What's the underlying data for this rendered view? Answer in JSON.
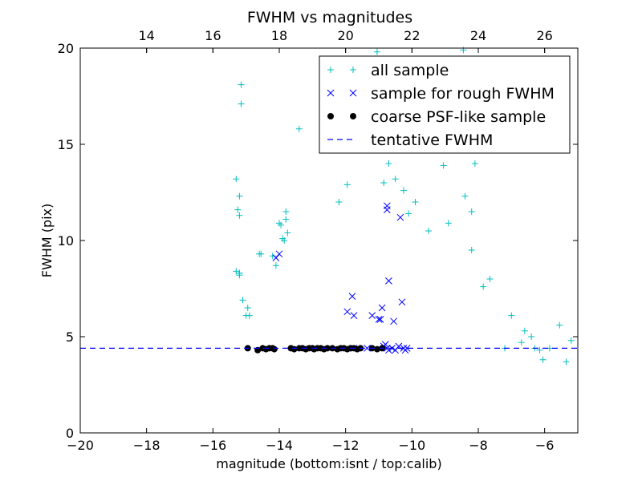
{
  "chart_data": {
    "type": "scatter",
    "title": "FWHM vs magnitudes",
    "xlabel": "magnitude (bottom:isnt / top:calib)",
    "ylabel": "FWHM (pix)",
    "xlim": [
      -20,
      -5
    ],
    "ylim": [
      0,
      20
    ],
    "x_ticks": [
      -20,
      -18,
      -16,
      -14,
      -12,
      -10,
      -8,
      -6
    ],
    "x_tick_labels": [
      "−20",
      "−18",
      "−16",
      "−14",
      "−12",
      "−10",
      "−8",
      "−6"
    ],
    "y_ticks": [
      0,
      5,
      10,
      15,
      20
    ],
    "y_tick_labels": [
      "0",
      "5",
      "10",
      "15",
      "20"
    ],
    "top_axis": {
      "offset": 32,
      "ticks": [
        14,
        16,
        18,
        20,
        22,
        24,
        26
      ],
      "tick_labels": [
        "14",
        "16",
        "18",
        "20",
        "22",
        "24",
        "26"
      ]
    },
    "grid": false,
    "legend_position": "top-right",
    "tentative_fwhm": 4.4,
    "series": [
      {
        "name": "all sample",
        "marker": "plus",
        "color": "#00bfbf",
        "x": [
          -15.3,
          -15.25,
          -15.2,
          -15.2,
          -15.15,
          -15.3,
          -15.2,
          -15.15,
          -15.2,
          -15.2,
          -15.1,
          -15.0,
          -14.95,
          -14.9,
          -14.6,
          -14.55,
          -14.2,
          -14.1,
          -14.0,
          -13.95,
          -13.9,
          -13.85,
          -13.8,
          -13.8,
          -13.75,
          -13.4,
          -12.2,
          -11.95,
          -11.05,
          -10.95,
          -10.85,
          -10.7,
          -10.5,
          -10.25,
          -10.1,
          -9.9,
          -9.7,
          -9.5,
          -9.3,
          -9.05,
          -8.9,
          -8.55,
          -8.45,
          -8.4,
          -8.2,
          -8.2,
          -8.1,
          -7.85,
          -7.65,
          -7.2,
          -7.0,
          -6.7,
          -6.6,
          -6.4,
          -6.3,
          -6.15,
          -6.05,
          -5.85,
          -5.55,
          -5.35,
          -5.2
        ],
        "y": [
          13.2,
          11.6,
          11.3,
          12.3,
          18.1,
          8.4,
          8.2,
          17.1,
          8.3,
          8.3,
          6.9,
          6.1,
          6.5,
          6.1,
          9.3,
          9.3,
          9.2,
          8.7,
          10.9,
          10.8,
          10.1,
          10.0,
          11.5,
          11.1,
          10.4,
          15.8,
          12.0,
          12.9,
          19.8,
          15.6,
          13.0,
          14.0,
          13.2,
          12.6,
          11.4,
          12.0,
          15.4,
          10.5,
          14.9,
          13.9,
          10.9,
          14.7,
          19.9,
          12.3,
          11.5,
          9.5,
          14.0,
          7.6,
          8.0,
          4.4,
          6.1,
          4.7,
          5.3,
          5.0,
          4.4,
          4.3,
          3.8,
          4.4,
          5.6,
          3.7,
          4.8
        ]
      },
      {
        "name": "sample for rough FWHM",
        "marker": "x",
        "color": "#0000ff",
        "x": [
          -14.1,
          -14.0,
          -11.8,
          -11.95,
          -11.75,
          -11.75,
          -11.35,
          -11.2,
          -11.0,
          -10.95,
          -10.9,
          -10.85,
          -10.8,
          -10.75,
          -10.75,
          -10.7,
          -10.6,
          -10.55,
          -10.5,
          -10.4,
          -10.35,
          -10.3,
          -10.25,
          -10.2,
          -10.15,
          -10.75,
          -10.7
        ],
        "y": [
          9.1,
          9.3,
          7.1,
          6.3,
          6.1,
          4.4,
          4.4,
          6.1,
          5.9,
          5.9,
          6.5,
          4.5,
          4.6,
          11.6,
          11.8,
          7.9,
          4.4,
          5.8,
          4.3,
          4.5,
          11.2,
          6.8,
          4.4,
          4.3,
          4.4,
          4.4,
          4.3
        ]
      },
      {
        "name": "coarse PSF-like sample",
        "marker": "dot",
        "color": "#000000",
        "x": [
          -14.95,
          -14.65,
          -14.5,
          -14.4,
          -14.3,
          -14.2,
          -14.15,
          -13.65,
          -13.55,
          -13.4,
          -13.3,
          -13.2,
          -13.1,
          -13.0,
          -12.95,
          -12.85,
          -12.75,
          -12.65,
          -12.55,
          -12.4,
          -12.25,
          -12.15,
          -12.05,
          -11.95,
          -11.85,
          -11.75,
          -11.65,
          -11.55,
          -11.2,
          -11.05,
          -10.9
        ],
        "y": [
          4.4,
          4.3,
          4.4,
          4.35,
          4.4,
          4.4,
          4.35,
          4.4,
          4.35,
          4.4,
          4.4,
          4.35,
          4.4,
          4.4,
          4.35,
          4.4,
          4.4,
          4.35,
          4.4,
          4.4,
          4.35,
          4.4,
          4.4,
          4.35,
          4.4,
          4.4,
          4.35,
          4.4,
          4.4,
          4.35,
          4.4
        ]
      },
      {
        "name": "tentative FWHM",
        "marker": "dashed-line",
        "color": "#0000ff",
        "x": [
          -20,
          -5
        ],
        "y": [
          4.4,
          4.4
        ]
      }
    ]
  }
}
